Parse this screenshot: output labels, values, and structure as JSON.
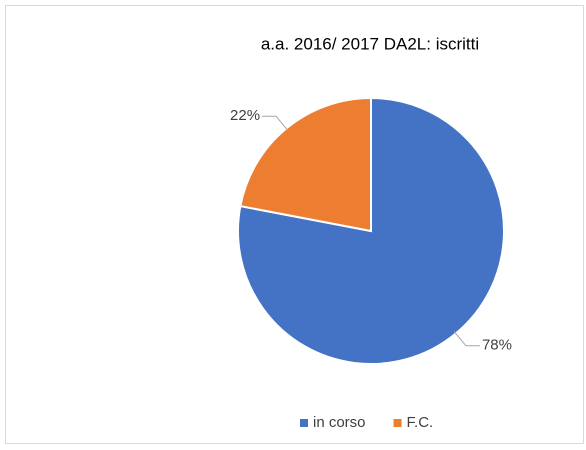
{
  "chart_data": {
    "type": "pie",
    "title": "a.a. 2016/ 2017 DA2L: iscritti",
    "categories": [
      "in corso",
      "F.C."
    ],
    "values": [
      78,
      22
    ],
    "value_labels": [
      "78%",
      "22%"
    ],
    "colors": [
      "#4472c4",
      "#ed7d31"
    ],
    "legend": "bottom"
  }
}
